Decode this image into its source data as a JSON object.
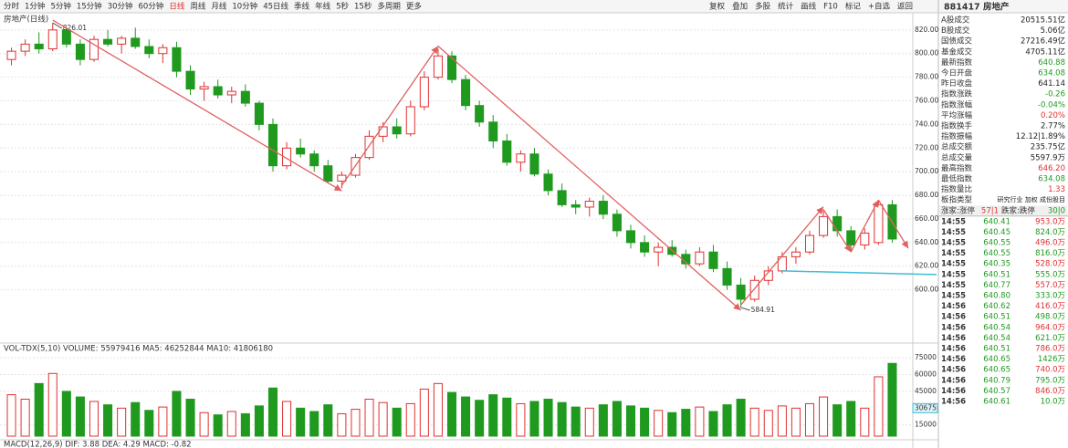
{
  "toolbar": {
    "periods": [
      "分时",
      "1分钟",
      "5分钟",
      "15分钟",
      "30分钟",
      "60分钟",
      "日线",
      "周线",
      "月线",
      "10分钟",
      "45日线",
      "季线",
      "年线",
      "5秒",
      "15秒",
      "多周期",
      "更多"
    ],
    "active": "日线",
    "tools": [
      "复权",
      "叠加",
      "多股",
      "统计",
      "画线",
      "F10",
      "标记",
      "+自选",
      "返回"
    ]
  },
  "chart_data": {
    "type": "candlestick",
    "title": "房地产(日线)",
    "ylim": [
      558,
      833
    ],
    "yticks": [
      {
        "value": 820,
        "label": "820.00"
      },
      {
        "value": 800,
        "label": "800.00"
      },
      {
        "value": 780,
        "label": "780.00"
      },
      {
        "value": 760,
        "label": "760.00"
      },
      {
        "value": 740,
        "label": "740.00"
      },
      {
        "value": 720,
        "label": "720.00"
      },
      {
        "value": 700,
        "label": "700.00"
      },
      {
        "value": 680,
        "label": "680.00"
      },
      {
        "value": 660,
        "label": "660.00"
      },
      {
        "value": 640,
        "label": "640.00"
      },
      {
        "value": 620,
        "label": "620.00"
      },
      {
        "value": 600,
        "label": "600.00"
      }
    ],
    "up_color": "#e03030",
    "down_color": "#1f9a1f",
    "open": [
      795,
      802,
      808,
      804,
      820,
      808,
      795,
      812,
      808,
      813,
      806,
      800,
      805,
      785,
      770,
      772,
      765,
      768,
      758,
      740,
      705,
      720,
      715,
      705,
      692,
      697,
      712,
      730,
      738,
      732,
      755,
      780,
      798,
      778,
      756,
      742,
      726,
      708,
      715,
      698,
      684,
      672,
      670,
      675,
      664,
      650,
      640,
      632,
      636,
      630,
      622,
      632,
      618,
      604,
      592,
      608,
      616,
      628,
      632,
      646,
      662,
      650,
      638,
      640,
      672
    ],
    "high": [
      805,
      812,
      818,
      826.01,
      822,
      812,
      815,
      820,
      815,
      822,
      812,
      808,
      810,
      790,
      776,
      778,
      772,
      774,
      760,
      745,
      725,
      728,
      718,
      710,
      700,
      715,
      735,
      742,
      745,
      760,
      785,
      804,
      802,
      782,
      760,
      748,
      732,
      718,
      720,
      702,
      690,
      676,
      678,
      680,
      668,
      655,
      646,
      640,
      642,
      634,
      636,
      638,
      624,
      610,
      612,
      620,
      632,
      636,
      650,
      668,
      668,
      654,
      652,
      676,
      676
    ],
    "low": [
      790,
      798,
      800,
      802,
      805,
      790,
      793,
      806,
      800,
      804,
      796,
      792,
      780,
      765,
      760,
      762,
      758,
      755,
      735,
      700,
      702,
      712,
      700,
      690,
      686,
      695,
      710,
      725,
      728,
      730,
      752,
      778,
      775,
      752,
      738,
      720,
      705,
      700,
      696,
      680,
      670,
      664,
      662,
      660,
      645,
      635,
      628,
      620,
      628,
      618,
      620,
      615,
      600,
      584.91,
      590,
      604,
      614,
      622,
      630,
      644,
      645,
      632,
      634,
      638,
      640
    ],
    "close": [
      802,
      808,
      804,
      820,
      808,
      795,
      812,
      808,
      813,
      806,
      800,
      805,
      785,
      770,
      772,
      765,
      768,
      758,
      740,
      705,
      720,
      715,
      705,
      692,
      697,
      712,
      730,
      738,
      732,
      755,
      780,
      798,
      778,
      756,
      742,
      726,
      708,
      715,
      698,
      684,
      672,
      670,
      675,
      664,
      650,
      640,
      632,
      636,
      630,
      622,
      632,
      618,
      604,
      592,
      608,
      616,
      628,
      632,
      646,
      662,
      650,
      638,
      648,
      672,
      643
    ],
    "volume": [
      42000,
      38000,
      52000,
      61000,
      45000,
      40000,
      36000,
      33000,
      30000,
      35000,
      28000,
      31000,
      45000,
      38000,
      26000,
      24000,
      27000,
      25000,
      32000,
      48000,
      36000,
      30000,
      27000,
      33000,
      25000,
      29000,
      38000,
      35000,
      30000,
      34000,
      47000,
      52000,
      44000,
      40000,
      37000,
      42000,
      39000,
      34000,
      36000,
      38000,
      35000,
      31000,
      30000,
      33000,
      36000,
      32000,
      30000,
      28000,
      26000,
      29000,
      31000,
      27000,
      33000,
      38000,
      30000,
      28000,
      32000,
      30000,
      34000,
      40000,
      33000,
      36000,
      30000,
      58000,
      70000
    ],
    "volume_title": "VOL-TDX(5,10) VOLUME: 55979416 MA5: 46252844 MA10: 41806180",
    "volume_ylim": [
      5000,
      80000
    ],
    "volume_yticks": [
      75000,
      60000,
      45000,
      15000
    ],
    "volume_cursor": "30675",
    "macd_title": "MACD(12,26,9) DIF: 3.88 DEA: 4.29 MACD: -0.82",
    "trend_color": "#e06060",
    "support_color": "#3bbcd8"
  },
  "panel": {
    "title": "881417 房地产",
    "stats": [
      [
        "A股成交",
        "20515.51亿",
        "#222222"
      ],
      [
        "B股成交",
        "5.06亿",
        "#222222"
      ],
      [
        "国债成交",
        "27216.49亿",
        "#222222"
      ],
      [
        "基金成交",
        "4705.11亿",
        "#222222"
      ],
      [
        "最新指数",
        "640.88",
        "#1f9a1f"
      ],
      [
        "今日开盘",
        "634.08",
        "#1f9a1f"
      ],
      [
        "昨日收盘",
        "641.14",
        "#222222"
      ],
      [
        "指数涨跌",
        "-0.26",
        "#1f9a1f"
      ],
      [
        "指数涨幅",
        "-0.04%",
        "#1f9a1f"
      ],
      [
        "平均涨幅",
        "0.20%",
        "#e03030"
      ],
      [
        "指数换手",
        "2.77%",
        "#222222"
      ],
      [
        "指数振幅",
        "12.12|1.89%",
        "#222222"
      ],
      [
        "总成交额",
        "235.75亿",
        "#222222"
      ],
      [
        "总成交量",
        "5597.9万",
        "#222222"
      ],
      [
        "最高指数",
        "646.20",
        "#e03030"
      ],
      [
        "最低指数",
        "634.08",
        "#1f9a1f"
      ],
      [
        "指数量比",
        "1.33",
        "#e03030"
      ],
      [
        "板指类型",
        "研究行业 加权 成份股目",
        "#222222"
      ]
    ],
    "breadth": [
      "涨家:涨停",
      "57|1",
      "跌家:跌停",
      "30|0"
    ],
    "ticks": [
      [
        "14:55",
        "640.41",
        "953.0万"
      ],
      [
        "14:55",
        "640.45",
        "824.0万"
      ],
      [
        "14:55",
        "640.55",
        "496.0万"
      ],
      [
        "14:55",
        "640.55",
        "816.0万"
      ],
      [
        "14:55",
        "640.35",
        "528.0万"
      ],
      [
        "14:55",
        "640.51",
        "555.0万"
      ],
      [
        "14:55",
        "640.77",
        "557.0万"
      ],
      [
        "14:55",
        "640.80",
        "333.0万"
      ],
      [
        "14:56",
        "640.62",
        "416.0万"
      ],
      [
        "14:56",
        "640.51",
        "498.0万"
      ],
      [
        "14:56",
        "640.54",
        "964.0万"
      ],
      [
        "14:56",
        "640.54",
        "621.0万"
      ],
      [
        "14:56",
        "640.51",
        "786.0万"
      ],
      [
        "14:56",
        "640.65",
        "1426万"
      ],
      [
        "14:56",
        "640.65",
        "740.0万"
      ],
      [
        "14:56",
        "640.79",
        "795.0万"
      ],
      [
        "14:56",
        "640.57",
        "846.0万"
      ],
      [
        "14:56",
        "640.61",
        "10.0万"
      ]
    ],
    "tick_price_color": "#1f9a1f",
    "tick_volume_colors": [
      "#e03030",
      "#1f9a1f"
    ]
  }
}
